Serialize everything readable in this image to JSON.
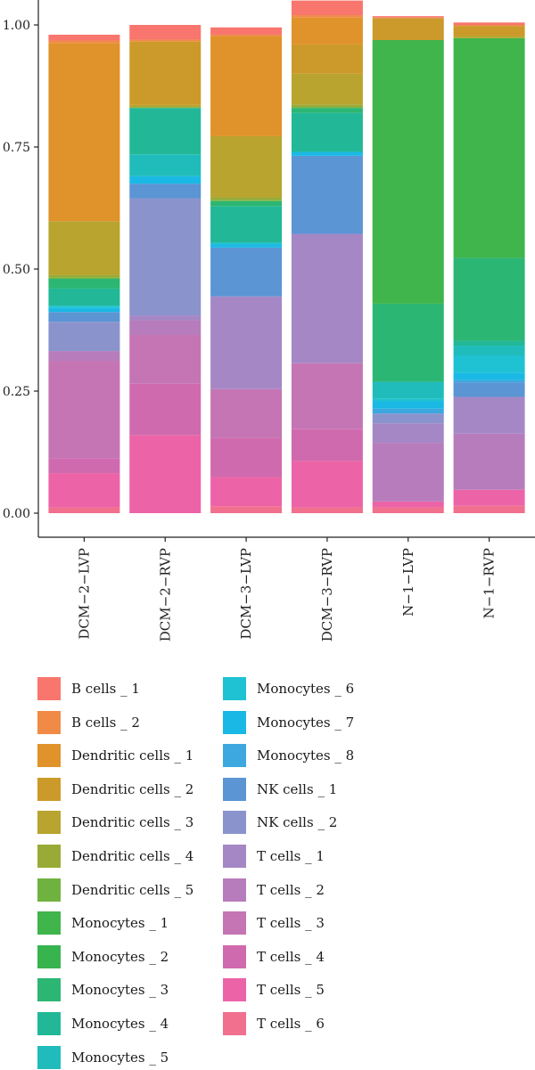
{
  "chart_data": {
    "type": "bar",
    "stacked": true,
    "orientation": "vertical",
    "title": "",
    "xlabel": "",
    "ylabel": "",
    "ylim": [
      0,
      1
    ],
    "yticks": [
      "0.00",
      "0.25",
      "0.50",
      "0.75",
      "1.00"
    ],
    "ytick_values": [
      0,
      0.25,
      0.5,
      0.75,
      1
    ],
    "grid": false,
    "legend_position": "bottom",
    "categories": [
      "DCM−2−LVP",
      "DCM−2−RVP",
      "DCM−3−LVP",
      "DCM−3−RVP",
      "N−1−LVP",
      "N−1−RVP"
    ],
    "series": [
      {
        "name": "B cells _ 1",
        "color": "#F8766D",
        "values": [
          0.012,
          0.03,
          0.015,
          0.03,
          0.003,
          0.005
        ]
      },
      {
        "name": "B cells _ 2",
        "color": "#F08B47",
        "values": [
          0.005,
          0.004,
          0.003,
          0.005,
          0.001,
          0.002
        ]
      },
      {
        "name": "Dendritic cells _ 1",
        "color": "#E0922B",
        "values": [
          0.365,
          0.0,
          0.205,
          0.055,
          0.0,
          0.0
        ]
      },
      {
        "name": "Dendritic cells _ 2",
        "color": "#CC9A2A",
        "values": [
          0.0,
          0.13,
          0.0,
          0.06,
          0.045,
          0.02
        ]
      },
      {
        "name": "Dendritic cells _ 3",
        "color": "#B8A42E",
        "values": [
          0.11,
          0.003,
          0.125,
          0.063,
          0.0,
          0.005
        ]
      },
      {
        "name": "Dendritic cells _ 4",
        "color": "#9AAA36",
        "values": [
          0.005,
          0.002,
          0.005,
          0.005,
          0.0,
          0.0
        ]
      },
      {
        "name": "Dendritic cells _ 5",
        "color": "#6FB240",
        "values": [
          0.003,
          0.001,
          0.003,
          0.002,
          0.0,
          0.0
        ]
      },
      {
        "name": "Monocytes _ 1",
        "color": "#3FB54B",
        "values": [
          0.0,
          0.0,
          0.0,
          0.0,
          0.54,
          0.45
        ]
      },
      {
        "name": "Monocytes _ 2",
        "color": "#37B44E",
        "values": [
          0.0,
          0.0,
          0.0,
          0.0,
          0.0,
          0.0
        ]
      },
      {
        "name": "Monocytes _ 3",
        "color": "#2CB673",
        "values": [
          0.02,
          0.0,
          0.01,
          0.01,
          0.16,
          0.17
        ]
      },
      {
        "name": "Monocytes _ 4",
        "color": "#22B897",
        "values": [
          0.035,
          0.095,
          0.075,
          0.08,
          0.0,
          0.01
        ]
      },
      {
        "name": "Monocytes _ 5",
        "color": "#20BCBC",
        "values": [
          0.0,
          0.045,
          0.0,
          0.0,
          0.035,
          0.02
        ]
      },
      {
        "name": "Monocytes _ 6",
        "color": "#1EC2D2",
        "values": [
          0.005,
          0.0,
          0.003,
          0.0,
          0.005,
          0.035
        ]
      },
      {
        "name": "Monocytes _ 7",
        "color": "#1AB9E5",
        "values": [
          0.008,
          0.015,
          0.007,
          0.008,
          0.015,
          0.015
        ]
      },
      {
        "name": "Monocytes _ 8",
        "color": "#3DA7DF",
        "values": [
          0.0,
          0.0,
          0.0,
          0.0,
          0.01,
          0.005
        ]
      },
      {
        "name": "NK cells _ 1",
        "color": "#5B95D4",
        "values": [
          0.02,
          0.03,
          0.1,
          0.16,
          0.0,
          0.03
        ]
      },
      {
        "name": "NK cells _ 2",
        "color": "#8B93CD",
        "values": [
          0.06,
          0.24,
          0.0,
          0.0,
          0.02,
          0.0
        ]
      },
      {
        "name": "T cells _ 1",
        "color": "#A587C5",
        "values": [
          0.0,
          0.01,
          0.19,
          0.265,
          0.04,
          0.075
        ]
      },
      {
        "name": "T cells _ 2",
        "color": "#B77CBC",
        "values": [
          0.02,
          0.03,
          0.0,
          0.0,
          0.12,
          0.115
        ]
      },
      {
        "name": "T cells _ 3",
        "color": "#C574B4",
        "values": [
          0.2,
          0.1,
          0.1,
          0.135,
          0.0,
          0.0
        ]
      },
      {
        "name": "T cells _ 4",
        "color": "#D06AAE",
        "values": [
          0.03,
          0.105,
          0.08,
          0.065,
          0.0,
          0.0
        ]
      },
      {
        "name": "T cells _ 5",
        "color": "#EC64A7",
        "values": [
          0.07,
          0.16,
          0.06,
          0.095,
          0.012,
          0.033
        ]
      },
      {
        "name": "T cells _ 6",
        "color": "#F0708E",
        "values": [
          0.012,
          0.0,
          0.014,
          0.012,
          0.012,
          0.015
        ]
      }
    ]
  }
}
